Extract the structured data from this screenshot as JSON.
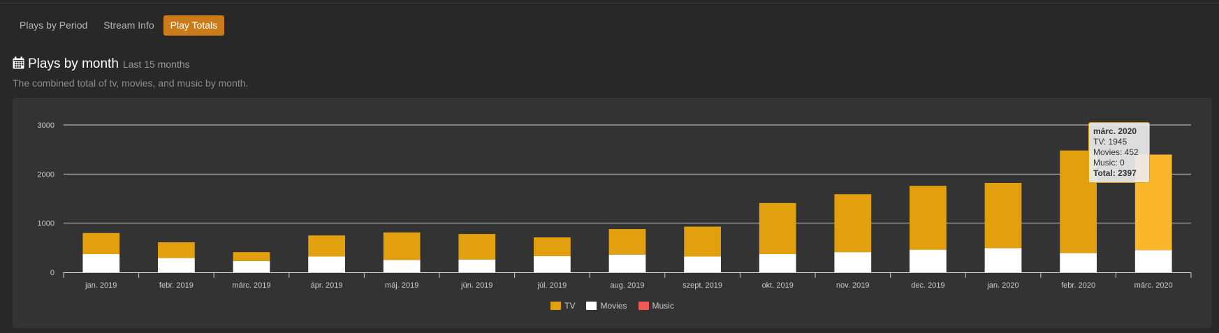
{
  "tabs": [
    {
      "label": "Plays by Period",
      "active": false
    },
    {
      "label": "Stream Info",
      "active": false
    },
    {
      "label": "Play Totals",
      "active": true
    }
  ],
  "heading": {
    "icon": "calendar-icon",
    "title": "Plays by month",
    "subtitle": "Last 15 months"
  },
  "description": "The combined total of tv, movies, and music by month.",
  "colors": {
    "tv": "#e2a00f",
    "tv_hover": "#fbb62b",
    "movies": "#ffffff",
    "music": "#f05858",
    "grid": "#cfcfcf",
    "tick_text": "#cccccc",
    "accent": "#cc7b19"
  },
  "chart_data": {
    "type": "bar",
    "stacked": true,
    "categories": [
      "jan. 2019",
      "febr. 2019",
      "márc. 2019",
      "ápr. 2019",
      "máj. 2019",
      "jún. 2019",
      "júl. 2019",
      "aug. 2019",
      "szept. 2019",
      "okt. 2019",
      "nov. 2019",
      "dec. 2019",
      "jan. 2020",
      "febr. 2020",
      "márc. 2020"
    ],
    "series": [
      {
        "name": "TV",
        "values": [
          430,
          320,
          180,
          430,
          560,
          520,
          380,
          520,
          610,
          1040,
          1180,
          1300,
          1330,
          2090,
          1945
        ]
      },
      {
        "name": "Movies",
        "values": [
          370,
          290,
          230,
          320,
          250,
          260,
          330,
          360,
          320,
          370,
          410,
          460,
          490,
          390,
          452
        ]
      },
      {
        "name": "Music",
        "values": [
          0,
          0,
          0,
          0,
          0,
          0,
          0,
          0,
          0,
          0,
          0,
          0,
          0,
          0,
          0
        ]
      }
    ],
    "yticks": [
      0,
      1000,
      2000,
      3000
    ],
    "ylim": [
      0,
      3000
    ],
    "grid": true,
    "legend_position": "bottom-center",
    "highlighted_category": "márc. 2020"
  },
  "tooltip": {
    "title": "márc. 2020",
    "tv": "TV: 1945",
    "movies": "Movies: 452",
    "music": "Music: 0",
    "total": "Total: 2397"
  }
}
